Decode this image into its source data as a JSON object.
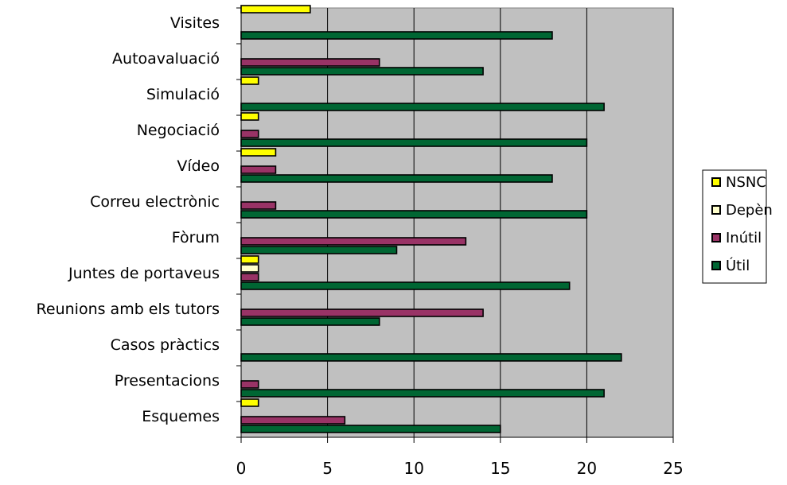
{
  "chart_data": {
    "type": "bar",
    "orientation": "horizontal",
    "title": "",
    "xlabel": "",
    "ylabel": "",
    "xlim": [
      0,
      25
    ],
    "x_ticks": [
      "0",
      "5",
      "10",
      "15",
      "20",
      "25"
    ],
    "grid": "vertical",
    "legend_position": "right",
    "plot_background": "#c0c0c0",
    "categories": [
      "Visites",
      "Autoavaluació",
      "Simulació",
      "Negociació",
      "Vídeo",
      "Correu electrònic",
      "Fòrum",
      "Juntes de portaveus",
      "Reunions amb els tutors",
      "Casos pràctics",
      "Presentacions",
      "Esquemes"
    ],
    "series": [
      {
        "name": "NSNC",
        "color": "#ffff00",
        "values": [
          4,
          0,
          1,
          1,
          2,
          0,
          0,
          1,
          0,
          0,
          0,
          1
        ]
      },
      {
        "name": "Depèn",
        "color": "#ffffcc",
        "values": [
          0,
          0,
          0,
          0,
          0,
          0,
          0,
          1,
          0,
          0,
          0,
          0
        ]
      },
      {
        "name": "Inútil",
        "color": "#993366",
        "values": [
          0,
          8,
          0,
          1,
          2,
          2,
          13,
          1,
          14,
          0,
          1,
          6
        ]
      },
      {
        "name": "Útil",
        "color": "#006633",
        "values": [
          18,
          14,
          21,
          20,
          18,
          20,
          9,
          19,
          8,
          22,
          21,
          15
        ]
      }
    ]
  }
}
